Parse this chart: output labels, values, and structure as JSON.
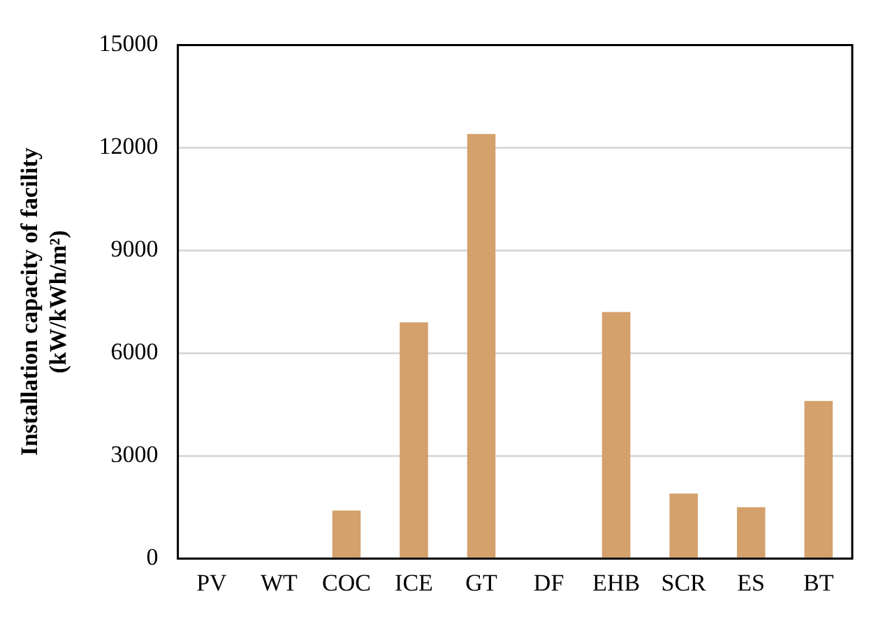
{
  "chart_data": {
    "type": "bar",
    "ylabel": "Installation capacity of facility\n(kW/kWh/m²)",
    "categories": [
      "PV",
      "WT",
      "COC",
      "ICE",
      "GT",
      "DF",
      "EHB",
      "SCR",
      "ES",
      "BT"
    ],
    "values": [
      0,
      0,
      1400,
      6900,
      12400,
      0,
      7200,
      1900,
      1500,
      4600
    ],
    "color": "#d4a06c",
    "ylim": [
      0,
      15000
    ],
    "yticks": [
      0,
      3000,
      6000,
      9000,
      12000,
      15000
    ],
    "grid": "y",
    "legend": false
  }
}
